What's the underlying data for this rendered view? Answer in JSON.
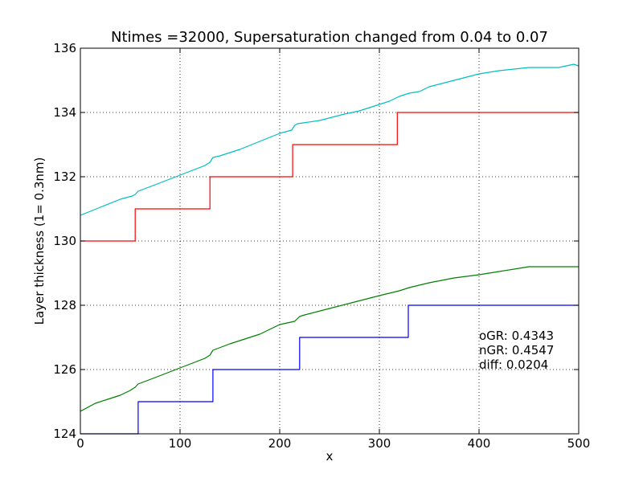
{
  "chart_data": {
    "type": "line",
    "title": "Ntimes =32000, Supersaturation changed from 0.04 to 0.07",
    "xlabel": "x",
    "ylabel": "Layer thickness (1= 0.3nm)",
    "xlim": [
      0,
      500
    ],
    "ylim": [
      124,
      136
    ],
    "xticks": [
      "0",
      "100",
      "200",
      "300",
      "400",
      "500"
    ],
    "yticks": [
      "124",
      "126",
      "128",
      "130",
      "132",
      "134",
      "136"
    ],
    "grid": true,
    "annotations": [
      "oGR: 0.4343",
      "nGR: 0.4547",
      "diff: 0.0204"
    ],
    "series": [
      {
        "color": "#00bfbf",
        "style": "smooth",
        "x": [
          0,
          20,
          40,
          52,
          55,
          58,
          75,
          100,
          125,
          130,
          133,
          140,
          160,
          180,
          200,
          212,
          215,
          218,
          240,
          265,
          280,
          295,
          300,
          310,
          320,
          330,
          340,
          350,
          375,
          400,
          420,
          450,
          480,
          495,
          500
        ],
        "y": [
          130.8,
          131.05,
          131.3,
          131.4,
          131.45,
          131.55,
          131.75,
          132.05,
          132.35,
          132.45,
          132.6,
          132.65,
          132.85,
          133.1,
          133.35,
          133.45,
          133.6,
          133.65,
          133.75,
          133.95,
          134.05,
          134.2,
          134.25,
          134.35,
          134.5,
          134.6,
          134.65,
          134.8,
          135.0,
          135.2,
          135.3,
          135.4,
          135.4,
          135.5,
          135.45
        ]
      },
      {
        "color": "#ff0000",
        "style": "step",
        "x": [
          0,
          55,
          55,
          130,
          130,
          213,
          213,
          318,
          318,
          500
        ],
        "y": [
          130,
          130,
          131,
          131,
          132,
          132,
          133,
          133,
          134,
          134
        ]
      },
      {
        "color": "#008000",
        "style": "smooth",
        "x": [
          0,
          15,
          30,
          40,
          50,
          55,
          58,
          75,
          100,
          125,
          130,
          133,
          150,
          180,
          200,
          215,
          220,
          225,
          250,
          275,
          300,
          320,
          325,
          330,
          350,
          375,
          400,
          420,
          450,
          480,
          500
        ],
        "y": [
          124.7,
          124.95,
          125.1,
          125.2,
          125.35,
          125.45,
          125.55,
          125.75,
          126.05,
          126.35,
          126.45,
          126.6,
          126.8,
          127.1,
          127.4,
          127.5,
          127.65,
          127.7,
          127.9,
          128.1,
          128.3,
          128.45,
          128.5,
          128.55,
          128.7,
          128.85,
          128.95,
          129.05,
          129.2,
          129.2,
          129.2
        ]
      },
      {
        "color": "#0000ff",
        "style": "step",
        "x": [
          0,
          58,
          58,
          133,
          133,
          220,
          220,
          329,
          329,
          500
        ],
        "y": [
          124,
          124,
          125,
          125,
          126,
          126,
          127,
          127,
          128,
          128
        ]
      }
    ]
  }
}
